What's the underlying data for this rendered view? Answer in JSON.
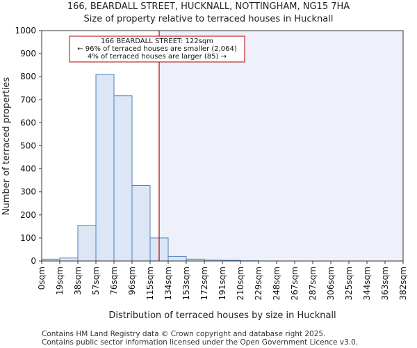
{
  "chart_data": {
    "type": "bar",
    "title": "166, BEARDALL STREET, HUCKNALL, NOTTINGHAM, NG15 7HA",
    "subtitle": "Size of property relative to terraced houses in Hucknall",
    "xlabel": "Distribution of terraced houses by size in Hucknall",
    "ylabel": "Number of terraced properties",
    "bin_edges": [
      0,
      19,
      38,
      57,
      76,
      96,
      115,
      134,
      153,
      172,
      191,
      210,
      229,
      248,
      267,
      287,
      306,
      325,
      344,
      363,
      382
    ],
    "x_tick_labels": [
      "0sqm",
      "19sqm",
      "38sqm",
      "57sqm",
      "76sqm",
      "96sqm",
      "115sqm",
      "134sqm",
      "153sqm",
      "172sqm",
      "191sqm",
      "210sqm",
      "229sqm",
      "248sqm",
      "267sqm",
      "287sqm",
      "306sqm",
      "325sqm",
      "344sqm",
      "363sqm",
      "382sqm"
    ],
    "values": [
      8,
      13,
      155,
      810,
      717,
      328,
      100,
      20,
      8,
      4,
      3,
      1,
      0,
      0,
      0,
      0,
      0,
      0,
      0,
      0
    ],
    "ylim": [
      0,
      1000
    ],
    "y_ticks": [
      0,
      100,
      200,
      300,
      400,
      500,
      600,
      700,
      800,
      900,
      1000
    ],
    "property_line_bin": 6.5,
    "annotation": {
      "line1": "166 BEARDALL STREET: 122sqm",
      "line2": "← 96% of terraced houses are smaller (2,064)",
      "line3": "4% of terraced houses are larger (85) →"
    },
    "colors": {
      "bar_fill": "#dce6f5",
      "bar_stroke": "#4f7fbf",
      "highlight_bg": "#eef1f9",
      "property_line": "#b00000",
      "annotation_border": "#b00000"
    }
  },
  "footer": {
    "line1": "Contains HM Land Registry data © Crown copyright and database right 2025.",
    "line2": "Contains public sector information licensed under the Open Government Licence v3.0."
  }
}
